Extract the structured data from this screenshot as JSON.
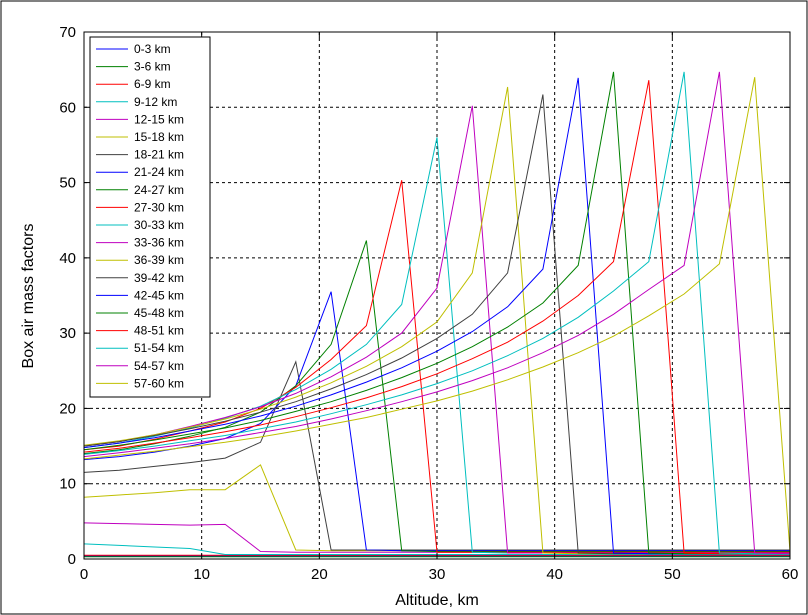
{
  "chart_data": {
    "type": "line",
    "xlabel": "Altitude, km",
    "ylabel": "Box air mass factors",
    "xlim": [
      0,
      60
    ],
    "ylim": [
      0,
      70
    ],
    "xticks": [
      0,
      10,
      20,
      30,
      40,
      50,
      60
    ],
    "yticks": [
      0,
      10,
      20,
      30,
      40,
      50,
      60,
      70
    ],
    "grid": true,
    "legend_position": "top-left",
    "x": [
      0,
      3,
      6,
      9,
      12,
      15,
      18,
      21,
      24,
      27,
      30,
      33,
      36,
      39,
      42,
      45,
      48,
      51,
      54,
      57,
      60
    ],
    "series": [
      {
        "name": "0-3 km",
        "color": "#0000ff",
        "values": [
          0.4,
          0.4,
          0.4,
          0.4,
          0.4,
          0.4,
          0.4,
          0.4,
          0.4,
          0.4,
          0.4,
          0.4,
          0.4,
          0.4,
          0.4,
          0.4,
          0.4,
          0.4,
          0.4,
          0.4,
          0.4
        ]
      },
      {
        "name": "3-6 km",
        "color": "#008000",
        "values": [
          0.3,
          0.3,
          0.3,
          0.3,
          0.3,
          0.3,
          0.3,
          0.3,
          0.3,
          0.3,
          0.3,
          0.3,
          0.3,
          0.3,
          0.3,
          0.3,
          0.3,
          0.3,
          0.3,
          0.3,
          0.3
        ]
      },
      {
        "name": "6-9 km",
        "color": "#ff0000",
        "values": [
          0.5,
          0.5,
          0.5,
          0.5,
          0.5,
          0.5,
          0.5,
          0.5,
          0.5,
          0.5,
          0.5,
          0.5,
          0.5,
          0.5,
          0.5,
          0.5,
          0.5,
          0.5,
          0.5,
          0.5,
          0.5
        ]
      },
      {
        "name": "9-12 km",
        "color": "#00bfbf",
        "values": [
          2.0,
          1.8,
          1.6,
          1.4,
          0.6,
          0.6,
          0.6,
          0.6,
          0.6,
          0.6,
          0.6,
          0.6,
          0.6,
          0.6,
          0.6,
          0.6,
          0.6,
          0.6,
          0.6,
          0.6,
          0.6
        ]
      },
      {
        "name": "12-15 km",
        "color": "#bf00bf",
        "values": [
          4.8,
          4.7,
          4.6,
          4.5,
          4.6,
          1.0,
          0.9,
          0.9,
          0.9,
          0.9,
          0.9,
          0.9,
          0.9,
          0.9,
          0.9,
          0.9,
          0.9,
          0.9,
          0.9,
          0.9,
          0.9
        ]
      },
      {
        "name": "15-18 km",
        "color": "#bfbf00",
        "values": [
          8.2,
          8.5,
          8.8,
          9.2,
          9.2,
          12.5,
          1.2,
          1.1,
          1.1,
          1.1,
          1.1,
          1.1,
          1.1,
          1.1,
          1.1,
          1.1,
          1.1,
          1.1,
          1.1,
          1.1,
          1.1
        ]
      },
      {
        "name": "18-21 km",
        "color": "#404040",
        "values": [
          11.5,
          11.8,
          12.3,
          12.8,
          13.4,
          15.5,
          26.2,
          1.2,
          1.2,
          1.2,
          1.2,
          1.2,
          1.2,
          1.2,
          1.2,
          1.2,
          1.2,
          1.2,
          1.2,
          1.2,
          1.2
        ]
      },
      {
        "name": "21-24 km",
        "color": "#0000ff",
        "values": [
          13.2,
          13.6,
          14.2,
          15.0,
          16.0,
          18.0,
          23.0,
          35.5,
          1.2,
          1.1,
          1.1,
          1.1,
          1.1,
          1.1,
          1.1,
          1.1,
          1.1,
          1.1,
          1.1,
          1.1,
          1.1
        ]
      },
      {
        "name": "24-27 km",
        "color": "#008000",
        "values": [
          14.0,
          14.5,
          15.3,
          16.3,
          17.5,
          19.5,
          23.0,
          28.5,
          42.3,
          1.1,
          1.0,
          1.0,
          1.0,
          1.0,
          1.0,
          1.0,
          1.0,
          1.0,
          1.0,
          1.0,
          1.0
        ]
      },
      {
        "name": "27-30 km",
        "color": "#ff0000",
        "values": [
          14.5,
          15.0,
          15.9,
          17.0,
          18.2,
          20.0,
          22.8,
          26.5,
          31.0,
          50.3,
          0.9,
          0.9,
          0.9,
          0.9,
          0.9,
          0.9,
          0.9,
          0.9,
          0.9,
          0.9,
          0.9
        ]
      },
      {
        "name": "30-33 km",
        "color": "#00bfbf",
        "values": [
          14.8,
          15.4,
          16.3,
          17.4,
          18.7,
          20.3,
          22.5,
          25.2,
          28.5,
          33.8,
          56.0,
          0.9,
          0.8,
          0.8,
          0.8,
          0.8,
          0.8,
          0.8,
          0.8,
          0.8,
          0.8
        ]
      },
      {
        "name": "33-36 km",
        "color": "#bf00bf",
        "values": [
          15.0,
          15.6,
          16.5,
          17.6,
          18.8,
          20.2,
          22.0,
          24.2,
          26.8,
          30.0,
          36.0,
          60.2,
          0.8,
          0.8,
          0.8,
          0.8,
          0.8,
          0.8,
          0.8,
          0.8,
          0.8
        ]
      },
      {
        "name": "36-39 km",
        "color": "#bfbf00",
        "values": [
          15.1,
          15.7,
          16.5,
          17.5,
          18.6,
          19.9,
          21.5,
          23.4,
          25.6,
          28.2,
          31.5,
          38.0,
          62.7,
          0.8,
          0.7,
          0.7,
          0.7,
          0.7,
          0.7,
          0.7,
          0.7
        ]
      },
      {
        "name": "39-42 km",
        "color": "#404040",
        "values": [
          15.0,
          15.6,
          16.4,
          17.3,
          18.3,
          19.5,
          20.9,
          22.6,
          24.5,
          26.7,
          29.3,
          32.5,
          38.0,
          61.7,
          0.8,
          0.7,
          0.7,
          0.7,
          0.7,
          0.7,
          0.7
        ]
      },
      {
        "name": "42-45 km",
        "color": "#0000ff",
        "values": [
          14.8,
          15.4,
          16.1,
          17.0,
          17.9,
          19.0,
          20.3,
          21.8,
          23.5,
          25.4,
          27.6,
          30.2,
          33.5,
          38.5,
          63.9,
          0.8,
          0.7,
          0.7,
          0.7,
          0.7,
          0.7
        ]
      },
      {
        "name": "45-48 km",
        "color": "#008000",
        "values": [
          14.5,
          15.1,
          15.8,
          16.6,
          17.4,
          18.4,
          19.6,
          20.9,
          22.4,
          24.1,
          26.0,
          28.2,
          30.8,
          34.0,
          39.0,
          64.7,
          0.8,
          0.7,
          0.7,
          0.7,
          0.7
        ]
      },
      {
        "name": "48-51 km",
        "color": "#ff0000",
        "values": [
          14.2,
          14.7,
          15.4,
          16.1,
          16.9,
          17.8,
          18.9,
          20.1,
          21.4,
          22.9,
          24.6,
          26.6,
          28.8,
          31.6,
          35.0,
          39.5,
          63.6,
          0.8,
          0.7,
          0.7,
          0.7
        ]
      },
      {
        "name": "51-54 km",
        "color": "#00bfbf",
        "values": [
          13.9,
          14.4,
          15.0,
          15.7,
          16.4,
          17.3,
          18.2,
          19.3,
          20.5,
          21.8,
          23.3,
          25.0,
          27.0,
          29.3,
          32.1,
          35.6,
          39.5,
          64.7,
          0.8,
          0.7,
          0.7
        ]
      },
      {
        "name": "54-57 km",
        "color": "#bf00bf",
        "values": [
          13.6,
          14.1,
          14.7,
          15.3,
          16.0,
          16.8,
          17.6,
          18.6,
          19.7,
          20.9,
          22.2,
          23.7,
          25.4,
          27.4,
          29.7,
          32.5,
          35.8,
          39.0,
          64.7,
          0.8,
          0.7
        ]
      },
      {
        "name": "57-60 km",
        "color": "#bfbf00",
        "values": [
          13.3,
          13.8,
          14.3,
          14.9,
          15.5,
          16.2,
          17.0,
          17.9,
          18.8,
          19.9,
          21.0,
          22.3,
          23.8,
          25.5,
          27.4,
          29.6,
          32.3,
          35.2,
          39.2,
          64.0,
          1.0
        ]
      }
    ]
  }
}
